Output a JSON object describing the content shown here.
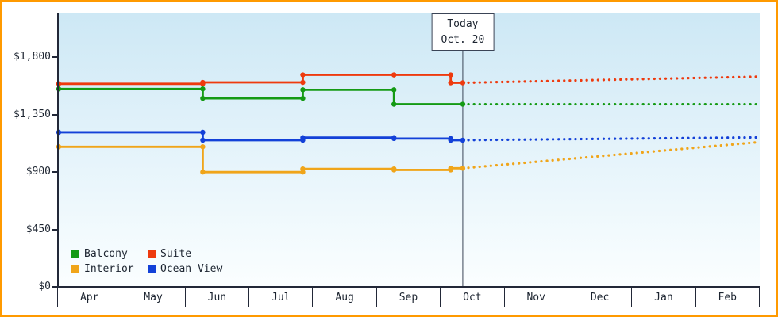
{
  "frame": {
    "border_color": "#ff9a00"
  },
  "colors": {
    "axis": "#222838",
    "text": "#1c2430",
    "today_line": "#3a4456",
    "plot_bg_top": "#cde8f5",
    "plot_bg_bottom": "#fbfeff"
  },
  "chart_data": {
    "type": "line",
    "months": [
      "Apr",
      "May",
      "Jun",
      "Jul",
      "Aug",
      "Sep",
      "Oct",
      "Nov",
      "Dec",
      "Jan",
      "Feb"
    ],
    "y_ticks": [
      {
        "value": 0,
        "label": "$0"
      },
      {
        "value": 450,
        "label": "$450"
      },
      {
        "value": 900,
        "label": "$900"
      },
      {
        "value": 1350,
        "label": "$1,350"
      },
      {
        "value": 1800,
        "label": "$1,800"
      }
    ],
    "y_max": 2150,
    "today": {
      "x": 6.34,
      "line1": "Today",
      "line2": "Oct. 20"
    },
    "series": [
      {
        "name": "Interior",
        "color": "#f0a51a",
        "steps": [
          {
            "x": 0,
            "v": 1098
          },
          {
            "x": 2.26,
            "v": 900
          },
          {
            "x": 3.83,
            "v": 925
          },
          {
            "x": 5.26,
            "v": 917
          },
          {
            "x": 6.15,
            "v": 930
          }
        ],
        "forecast_end": 1135
      },
      {
        "name": "Ocean View",
        "color": "#1341d8",
        "steps": [
          {
            "x": 0,
            "v": 1212
          },
          {
            "x": 2.26,
            "v": 1150
          },
          {
            "x": 3.83,
            "v": 1170
          },
          {
            "x": 5.26,
            "v": 1163
          },
          {
            "x": 6.15,
            "v": 1150
          }
        ],
        "forecast_end": 1172
      },
      {
        "name": "Balcony",
        "color": "#149a14",
        "steps": [
          {
            "x": 0,
            "v": 1552
          },
          {
            "x": 2.26,
            "v": 1478
          },
          {
            "x": 3.83,
            "v": 1545
          },
          {
            "x": 5.26,
            "v": 1432
          }
        ],
        "forecast_end": 1432
      },
      {
        "name": "Suite",
        "color": "#ee3a0e",
        "steps": [
          {
            "x": 0,
            "v": 1592
          },
          {
            "x": 2.26,
            "v": 1603
          },
          {
            "x": 3.83,
            "v": 1662
          },
          {
            "x": 5.26,
            "v": 1662
          },
          {
            "x": 6.15,
            "v": 1600
          }
        ],
        "forecast_end": 1648
      }
    ],
    "legend_order": [
      "Balcony",
      "Suite",
      "Interior",
      "Ocean View"
    ]
  }
}
